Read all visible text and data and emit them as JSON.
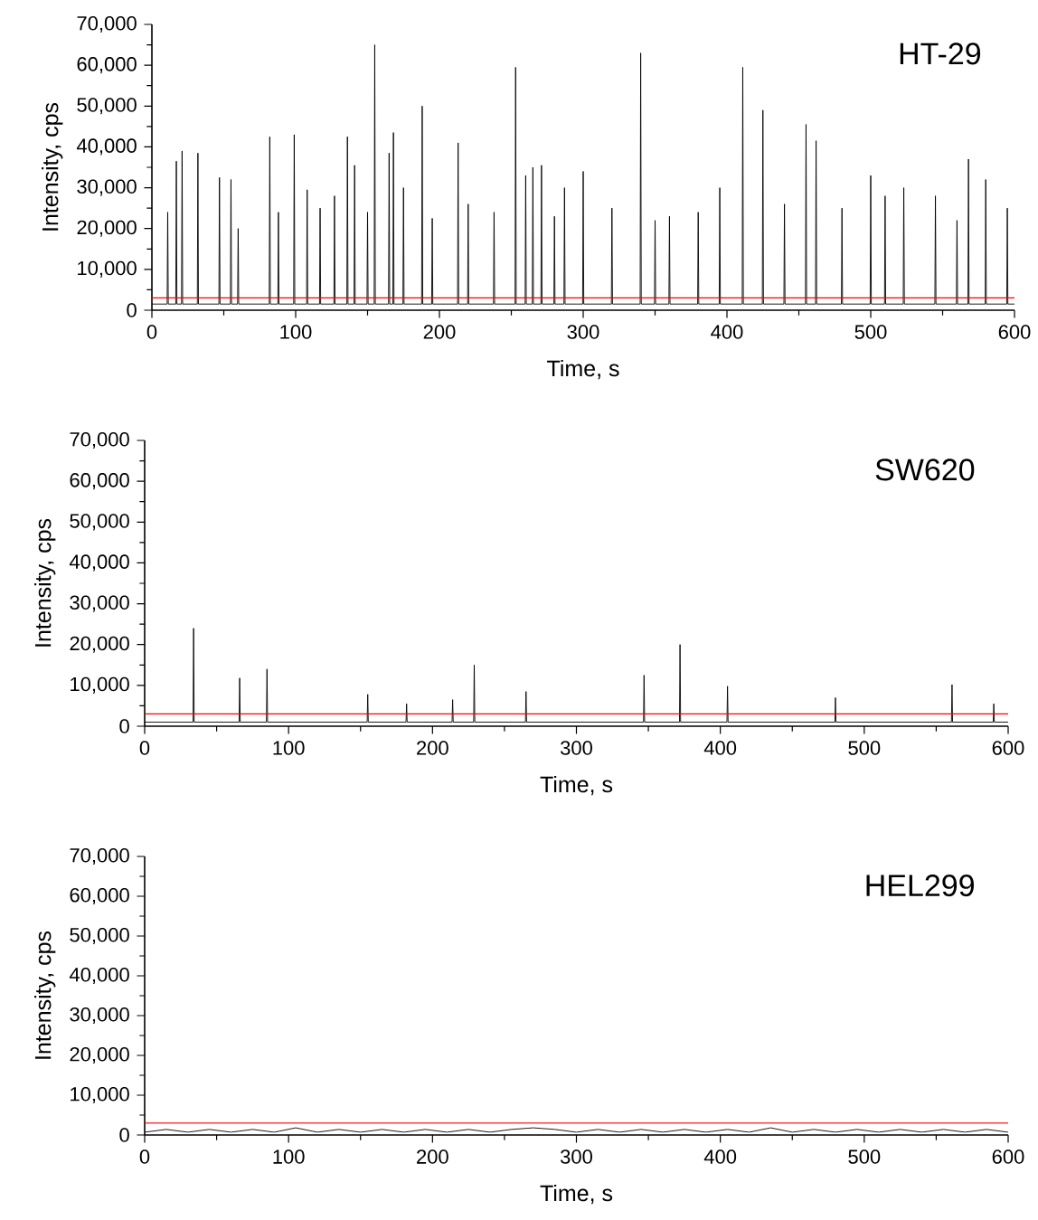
{
  "chart_data": [
    {
      "type": "line",
      "title": "HT-29",
      "xlabel": "Time, s",
      "ylabel": "Intensity, cps",
      "marker": "none",
      "xlim": [
        0,
        600
      ],
      "ylim": [
        0,
        70000
      ],
      "xticks": [
        0,
        100,
        200,
        300,
        400,
        500,
        600
      ],
      "yticks": [
        {
          "value": 0,
          "label": "0"
        },
        {
          "value": 10000,
          "label": "10,000"
        },
        {
          "value": 20000,
          "label": "20,000"
        },
        {
          "value": 30000,
          "label": "30,000"
        },
        {
          "value": 40000,
          "label": "40,000"
        },
        {
          "value": 50000,
          "label": "50,000"
        },
        {
          "value": 60000,
          "label": "60,000"
        },
        {
          "value": 70000,
          "label": "70,000"
        }
      ],
      "ref_lines": [
        {
          "axis": "y",
          "value": 3000,
          "color": "#ff0000"
        }
      ],
      "x": [
        0,
        10.6,
        11,
        11.4,
        16.6,
        17,
        17.4,
        20.6,
        21,
        21.4,
        31.6,
        32,
        32.4,
        46.6,
        47,
        47.4,
        54.6,
        55,
        55.4,
        59.6,
        60,
        60.4,
        81.6,
        82,
        82.4,
        87.6,
        88,
        88.4,
        98.6,
        99,
        99.4,
        107.6,
        108,
        108.4,
        116.6,
        117,
        117.4,
        126.6,
        127,
        127.4,
        135.6,
        136,
        136.4,
        140.6,
        141,
        141.4,
        149.6,
        150,
        150.4,
        154.6,
        155,
        155.4,
        164.6,
        165,
        165.4,
        167.6,
        168,
        168.4,
        174.6,
        175,
        175.4,
        187.6,
        188,
        188.4,
        194.6,
        195,
        195.4,
        212.6,
        213,
        213.4,
        219.6,
        220,
        220.4,
        237.6,
        238,
        238.4,
        252.6,
        253,
        253.4,
        259.6,
        260,
        260.4,
        264.6,
        265,
        265.4,
        270.6,
        271,
        271.4,
        279.6,
        280,
        280.4,
        286.6,
        287,
        287.4,
        299.6,
        300,
        300.4,
        319.6,
        320,
        320.4,
        339.6,
        340,
        340.4,
        349.6,
        350,
        350.4,
        359.6,
        360,
        360.4,
        379.6,
        380,
        380.4,
        394.6,
        395,
        395.4,
        410.6,
        411,
        411.4,
        424.6,
        425,
        425.4,
        439.6,
        440,
        440.4,
        454.6,
        455,
        455.4,
        461.6,
        462,
        462.4,
        479.6,
        480,
        480.4,
        499.6,
        500,
        500.4,
        509.6,
        510,
        510.4,
        522.6,
        523,
        523.4,
        544.6,
        545,
        545.4,
        559.6,
        560,
        560.4,
        567.6,
        568,
        568.4,
        579.6,
        580,
        580.4,
        594.6,
        595,
        595.4,
        600
      ],
      "series": [
        {
          "color": "#000000",
          "values": [
            1500,
            1500,
            24000,
            1500,
            1500,
            36500,
            1500,
            1500,
            39000,
            1500,
            1500,
            38500,
            1500,
            1500,
            32500,
            1500,
            1500,
            32000,
            1500,
            1500,
            20000,
            1500,
            1500,
            42500,
            1500,
            1500,
            24000,
            1500,
            1500,
            43000,
            1500,
            1500,
            29500,
            1500,
            1500,
            25000,
            1500,
            1500,
            28000,
            1500,
            1500,
            42500,
            1500,
            1500,
            35500,
            1500,
            1500,
            24000,
            1500,
            1500,
            65000,
            1500,
            1500,
            38500,
            1500,
            1500,
            43500,
            1500,
            1500,
            30000,
            1500,
            1500,
            50000,
            1500,
            1500,
            22500,
            1500,
            1500,
            41000,
            1500,
            1500,
            26000,
            1500,
            1500,
            24000,
            1500,
            1500,
            59500,
            1500,
            1500,
            33000,
            1500,
            1500,
            35000,
            1500,
            1500,
            35500,
            1500,
            1500,
            23000,
            1500,
            1500,
            30000,
            1500,
            1500,
            34000,
            1500,
            1500,
            25000,
            1500,
            1500,
            63000,
            1500,
            1500,
            22000,
            1500,
            1500,
            23000,
            1500,
            1500,
            24000,
            1500,
            1500,
            30000,
            1500,
            1500,
            59500,
            1500,
            1500,
            49000,
            1500,
            1500,
            26000,
            1500,
            1500,
            45500,
            1500,
            1500,
            41500,
            1500,
            1500,
            25000,
            1500,
            1500,
            33000,
            1500,
            1500,
            28000,
            1500,
            1500,
            30000,
            1500,
            1500,
            28000,
            1500,
            1500,
            22000,
            1500,
            1500,
            37000,
            1500,
            1500,
            32000,
            1500,
            1500,
            25000,
            1500,
            1500
          ]
        }
      ]
    },
    {
      "type": "line",
      "title": "SW620",
      "xlabel": "Time, s",
      "ylabel": "Intensity, cps",
      "marker": "none",
      "xlim": [
        0,
        600
      ],
      "ylim": [
        0,
        70000
      ],
      "xticks": [
        0,
        100,
        200,
        300,
        400,
        500,
        600
      ],
      "yticks": [
        {
          "value": 0,
          "label": "0"
        },
        {
          "value": 10000,
          "label": "10,000"
        },
        {
          "value": 20000,
          "label": "20,000"
        },
        {
          "value": 30000,
          "label": "30,000"
        },
        {
          "value": 40000,
          "label": "40,000"
        },
        {
          "value": 50000,
          "label": "50,000"
        },
        {
          "value": 60000,
          "label": "60,000"
        },
        {
          "value": 70000,
          "label": "70,000"
        }
      ],
      "ref_lines": [
        {
          "axis": "y",
          "value": 3000,
          "color": "#ff0000"
        }
      ],
      "x": [
        0,
        33.6,
        34,
        34.4,
        65.6,
        66,
        66.4,
        84.6,
        85,
        85.4,
        154.6,
        155,
        155.4,
        181.6,
        182,
        182.4,
        213.6,
        214,
        214.4,
        228.6,
        229,
        229.4,
        264.6,
        265,
        265.4,
        346.6,
        347,
        347.4,
        371.6,
        372,
        372.4,
        404.6,
        405,
        405.4,
        479.6,
        480,
        480.4,
        560.6,
        561,
        561.4,
        589.6,
        590,
        590.4,
        600
      ],
      "series": [
        {
          "color": "#000000",
          "values": [
            1000,
            1000,
            24000,
            1000,
            1000,
            11800,
            1000,
            1000,
            14000,
            1000,
            1000,
            7800,
            1000,
            1000,
            5500,
            1000,
            1000,
            6500,
            1000,
            1000,
            15000,
            1000,
            1000,
            8500,
            1000,
            1000,
            12500,
            1000,
            1000,
            20000,
            1000,
            1000,
            9800,
            1000,
            1000,
            7000,
            1000,
            1000,
            10200,
            1000,
            1000,
            5500,
            1000,
            1000
          ]
        }
      ]
    },
    {
      "type": "line",
      "title": "HEL299",
      "xlabel": "Time, s",
      "ylabel": "Intensity, cps",
      "marker": "none",
      "xlim": [
        0,
        600
      ],
      "ylim": [
        0,
        70000
      ],
      "xticks": [
        0,
        100,
        200,
        300,
        400,
        500,
        600
      ],
      "yticks": [
        {
          "value": 0,
          "label": "0"
        },
        {
          "value": 10000,
          "label": "10,000"
        },
        {
          "value": 20000,
          "label": "20,000"
        },
        {
          "value": 30000,
          "label": "30,000"
        },
        {
          "value": 40000,
          "label": "40,000"
        },
        {
          "value": 50000,
          "label": "50,000"
        },
        {
          "value": 60000,
          "label": "60,000"
        },
        {
          "value": 70000,
          "label": "70,000"
        }
      ],
      "ref_lines": [
        {
          "axis": "y",
          "value": 3000,
          "color": "#ff0000"
        }
      ],
      "x": [
        0,
        15,
        30,
        45,
        60,
        75,
        90,
        105,
        120,
        135,
        150,
        165,
        180,
        195,
        210,
        225,
        240,
        255,
        270,
        285,
        300,
        315,
        330,
        345,
        360,
        375,
        390,
        405,
        420,
        435,
        450,
        465,
        480,
        495,
        510,
        525,
        540,
        555,
        570,
        585,
        600
      ],
      "series": [
        {
          "color": "#000000",
          "values": [
            700,
            1400,
            700,
            1400,
            700,
            1400,
            700,
            1800,
            700,
            1400,
            700,
            1400,
            700,
            1400,
            700,
            1400,
            700,
            1400,
            1800,
            1400,
            700,
            1400,
            700,
            1400,
            700,
            1400,
            700,
            1400,
            700,
            1800,
            700,
            1400,
            700,
            1400,
            700,
            1400,
            700,
            1400,
            700,
            1400,
            700
          ]
        }
      ]
    }
  ]
}
